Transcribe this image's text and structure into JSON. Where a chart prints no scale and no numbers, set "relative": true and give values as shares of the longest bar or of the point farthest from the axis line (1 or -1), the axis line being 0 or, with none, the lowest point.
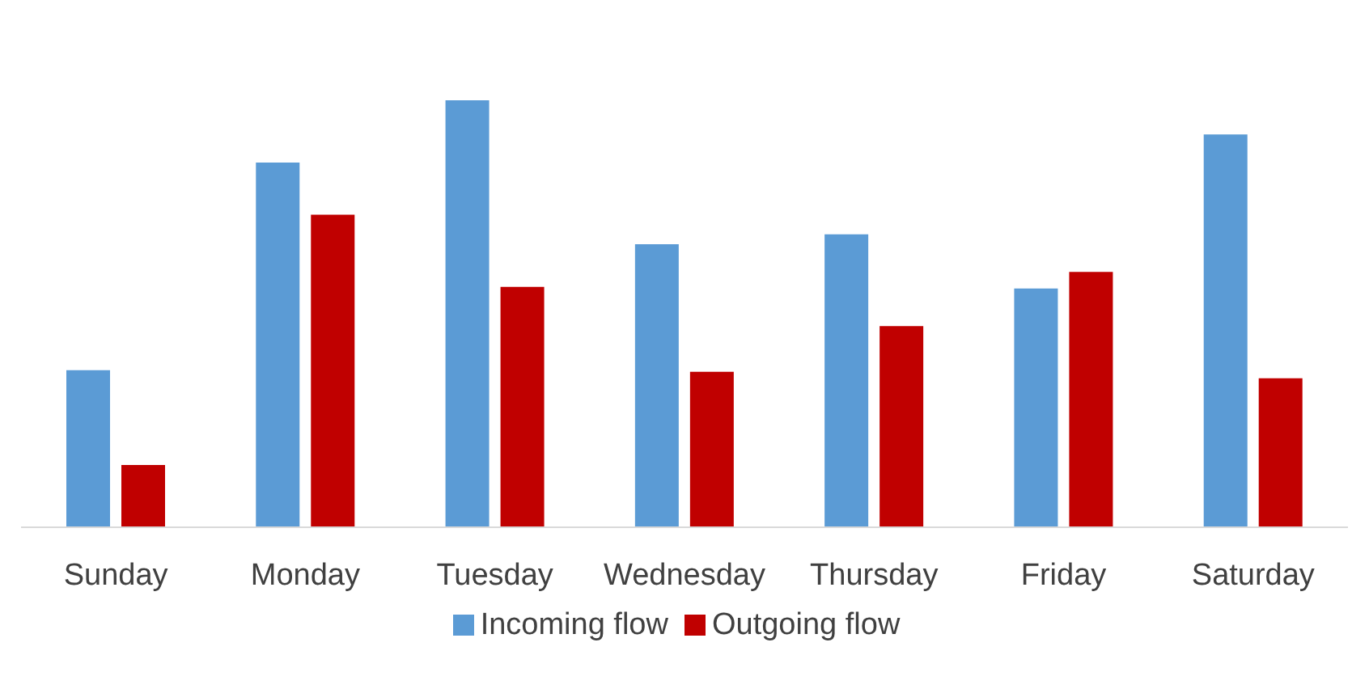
{
  "chart_data": {
    "type": "bar",
    "relative": true,
    "categories": [
      "Sunday",
      "Monday",
      "Tuesday",
      "Wednesday",
      "Thursday",
      "Friday",
      "Saturday"
    ],
    "series": [
      {
        "name": "Incoming flow",
        "color": "#5b9bd5",
        "values": [
          0.368,
          0.854,
          1,
          0.663,
          0.686,
          0.559,
          0.92
        ]
      },
      {
        "name": "Outgoing flow",
        "color": "#c00000",
        "values": [
          0.146,
          0.732,
          0.563,
          0.364,
          0.471,
          0.598,
          0.349
        ]
      }
    ],
    "grid": false,
    "legend": "bottom"
  }
}
